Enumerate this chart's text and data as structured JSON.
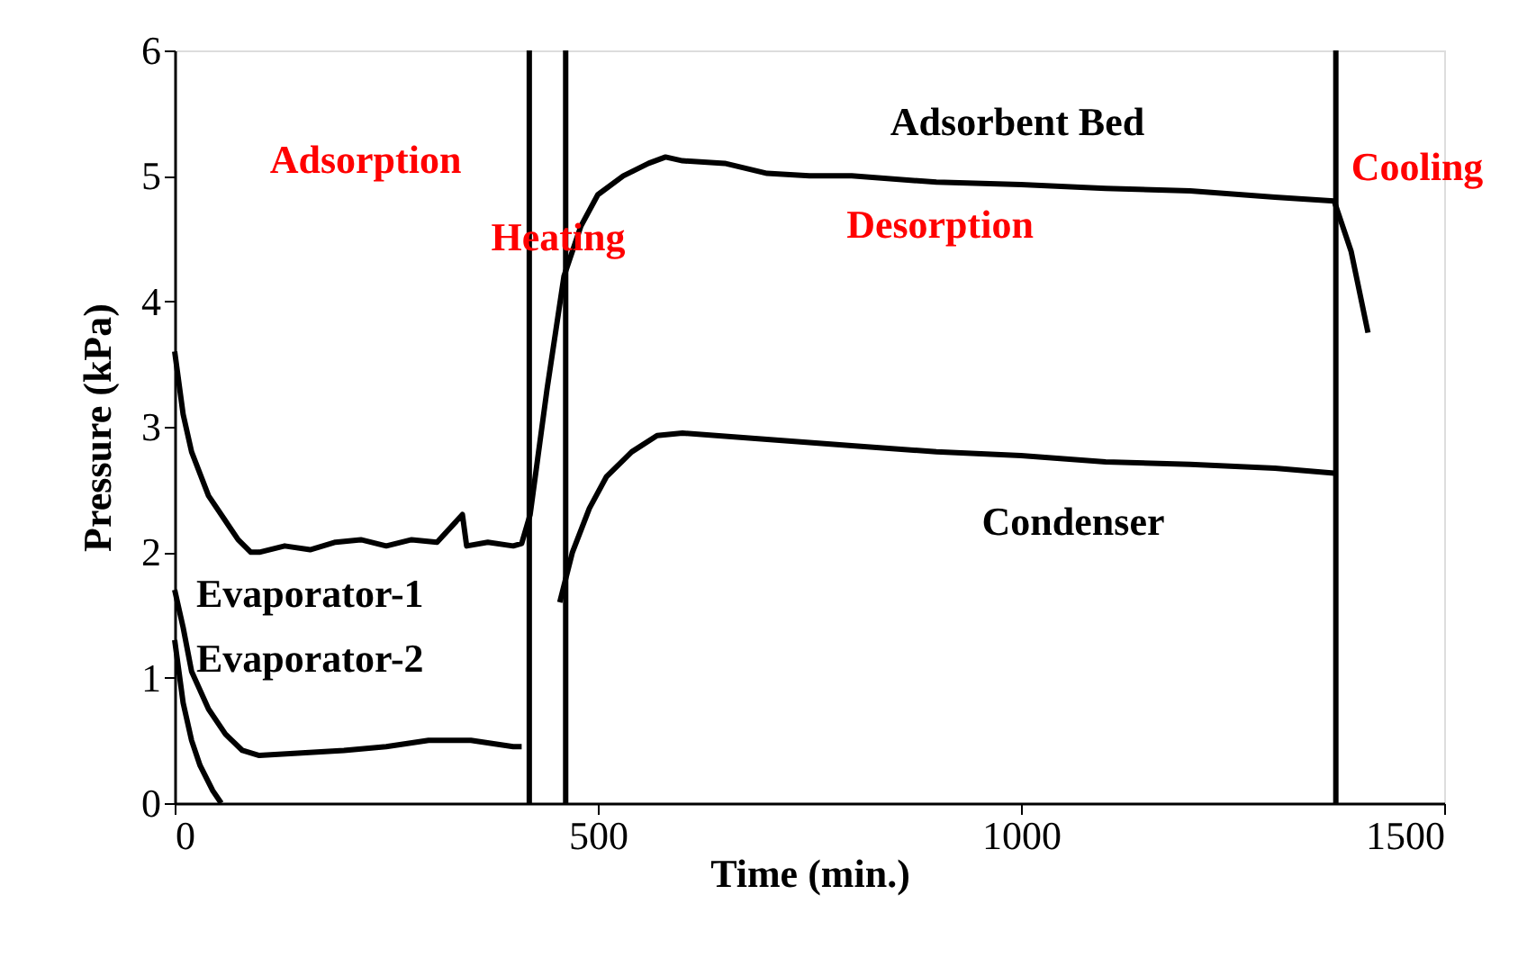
{
  "chart_data": {
    "type": "line",
    "xlabel": "Time (min.)",
    "ylabel": "Pressure (kPa)",
    "xlim": [
      0,
      1500
    ],
    "ylim": [
      0,
      6
    ],
    "xticks": [
      0,
      500,
      1000,
      1500
    ],
    "yticks": [
      0,
      1,
      2,
      3,
      4,
      5,
      6
    ],
    "grid": false,
    "marker": "none",
    "line_style": "solid",
    "series": [
      {
        "name": "Adsorbent Bed",
        "color": "#000000",
        "x": [
          0,
          10,
          20,
          40,
          60,
          75,
          90,
          100,
          130,
          160,
          190,
          220,
          250,
          280,
          310,
          340,
          345,
          370,
          400,
          410,
          420,
          440,
          460,
          480,
          500,
          530,
          560,
          580,
          600,
          650,
          700,
          750,
          800,
          900,
          1000,
          1100,
          1200,
          1300,
          1370,
          1390,
          1410
        ],
        "values": [
          3.6,
          3.1,
          2.8,
          2.45,
          2.25,
          2.1,
          2.0,
          2.0,
          2.05,
          2.02,
          2.08,
          2.1,
          2.05,
          2.1,
          2.08,
          2.3,
          2.05,
          2.08,
          2.05,
          2.07,
          2.3,
          3.3,
          4.2,
          4.6,
          4.85,
          5.0,
          5.1,
          5.15,
          5.12,
          5.1,
          5.02,
          5.0,
          5.0,
          4.95,
          4.93,
          4.9,
          4.88,
          4.83,
          4.8,
          4.4,
          3.75
        ]
      },
      {
        "name": "Condenser",
        "color": "#000000",
        "x": [
          455,
          470,
          490,
          510,
          540,
          570,
          600,
          700,
          800,
          900,
          1000,
          1100,
          1200,
          1300,
          1370
        ],
        "values": [
          1.6,
          2.0,
          2.35,
          2.6,
          2.8,
          2.93,
          2.95,
          2.9,
          2.85,
          2.8,
          2.77,
          2.72,
          2.7,
          2.67,
          2.63
        ]
      },
      {
        "name": "Evaporator-1",
        "color": "#000000",
        "x": [
          0,
          10,
          20,
          40,
          60,
          80,
          100,
          150,
          200,
          250,
          300,
          350,
          400,
          410
        ],
        "values": [
          1.7,
          1.4,
          1.05,
          0.75,
          0.55,
          0.42,
          0.38,
          0.4,
          0.42,
          0.45,
          0.5,
          0.5,
          0.45,
          0.45
        ]
      },
      {
        "name": "Evaporator-2",
        "color": "#000000",
        "x": [
          0,
          10,
          20,
          30,
          45,
          55
        ],
        "values": [
          1.3,
          0.8,
          0.5,
          0.3,
          0.1,
          0.0
        ]
      }
    ],
    "ref_lines": [
      {
        "axis": "x",
        "value": 419,
        "color": "#000000"
      },
      {
        "axis": "x",
        "value": 462,
        "color": "#000000"
      },
      {
        "axis": "x",
        "value": 1372,
        "color": "#000000"
      }
    ],
    "annotations": [
      "Adsorption",
      "Heating",
      "Desorption",
      "Cooling"
    ]
  }
}
